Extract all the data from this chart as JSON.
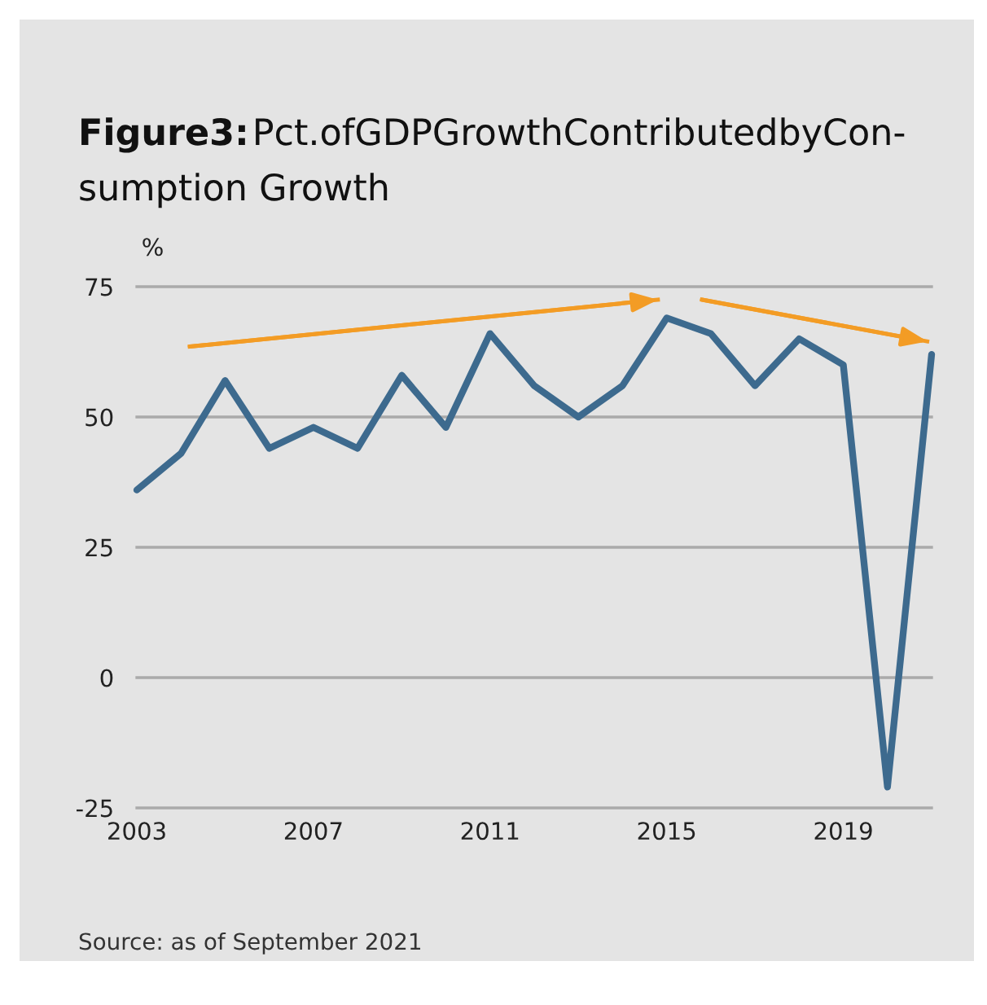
{
  "chart_data": {
    "type": "line",
    "title": "Figure3:Pct.ofGDPGrowthContributedbyCon-\nsumption Growth",
    "ylabel": "%",
    "x": [
      2003,
      2004,
      2005,
      2006,
      2007,
      2008,
      2009,
      2010,
      2011,
      2012,
      2013,
      2014,
      2015,
      2016,
      2017,
      2018,
      2019,
      2020,
      2021
    ],
    "series": [
      {
        "color": "#3d6a8e",
        "values": [
          36,
          43,
          57,
          44,
          48,
          44,
          58,
          48,
          66,
          56,
          50,
          56,
          69,
          66,
          56,
          65,
          60,
          -21,
          62
        ]
      },
      {
        "type": "line",
        "color": "#f39c25",
        "x": [
          2004.2,
          2014.8
        ],
        "values": [
          63.5,
          72.5
        ]
      },
      {
        "type": "line",
        "color": "#f39c25",
        "x": [
          2015.8,
          2020.9
        ],
        "values": [
          72.5,
          64.5
        ]
      }
    ],
    "xlim": [
      2003,
      2021
    ],
    "ylim": [
      -25,
      75
    ],
    "xticks": [
      2003,
      2007,
      2011,
      2015,
      2019
    ],
    "yticks": [
      -25,
      0,
      25,
      50,
      75
    ],
    "grid": "y",
    "legend": false,
    "marker": "none",
    "line_style": "solid",
    "annotations": [
      "Source: as of September 2021"
    ]
  }
}
